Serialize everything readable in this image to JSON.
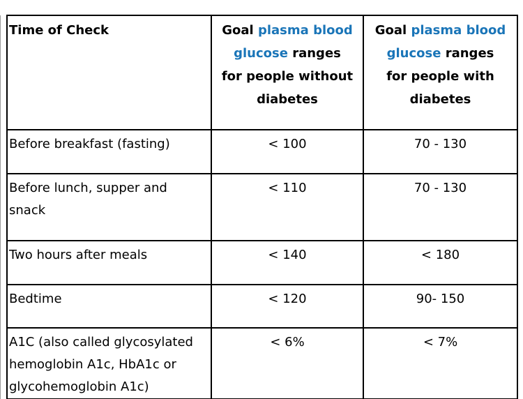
{
  "page": {
    "background": "#ffffff",
    "text_color": "#000000",
    "border_color": "#000000",
    "accent_blue": "#1a75b8"
  },
  "table": {
    "header": {
      "time_of_check": "Time of Check",
      "without_diabetes_lines": [
        [
          {
            "t": "Goal ",
            "link": false
          },
          {
            "t": "plasma blood",
            "link": true
          }
        ],
        [
          {
            "t": "glucose",
            "link": true
          },
          {
            "t": " ranges",
            "link": false
          }
        ],
        [
          {
            "t": "for people without",
            "link": false
          }
        ],
        [
          {
            "t": "diabetes",
            "link": false
          }
        ]
      ],
      "with_diabetes_lines": [
        [
          {
            "t": "Goal ",
            "link": false
          },
          {
            "t": "plasma blood",
            "link": true
          }
        ],
        [
          {
            "t": "glucose",
            "link": true
          },
          {
            "t": " ranges",
            "link": false
          }
        ],
        [
          {
            "t": "for people with",
            "link": false
          }
        ],
        [
          {
            "t": "diabetes",
            "link": false
          }
        ]
      ]
    },
    "rows": [
      {
        "label_lines": [
          "Before breakfast (fasting)"
        ],
        "without": "< 100",
        "with": "70 - 130"
      },
      {
        "label_lines": [
          "Before lunch, supper and",
          "snack"
        ],
        "without": "< 110",
        "with": "70 - 130"
      },
      {
        "label_lines": [
          "Two hours after meals"
        ],
        "without": "< 140",
        "with": "< 180"
      },
      {
        "label_lines": [
          "Bedtime"
        ],
        "without": "< 120",
        "with": "90- 150"
      },
      {
        "label_lines": [
          "A1C (also called glycosylated",
          "hemoglobin A1c, HbA1c or",
          "glycohemoglobin A1c)"
        ],
        "without": "< 6%",
        "with": "< 7%"
      }
    ]
  }
}
